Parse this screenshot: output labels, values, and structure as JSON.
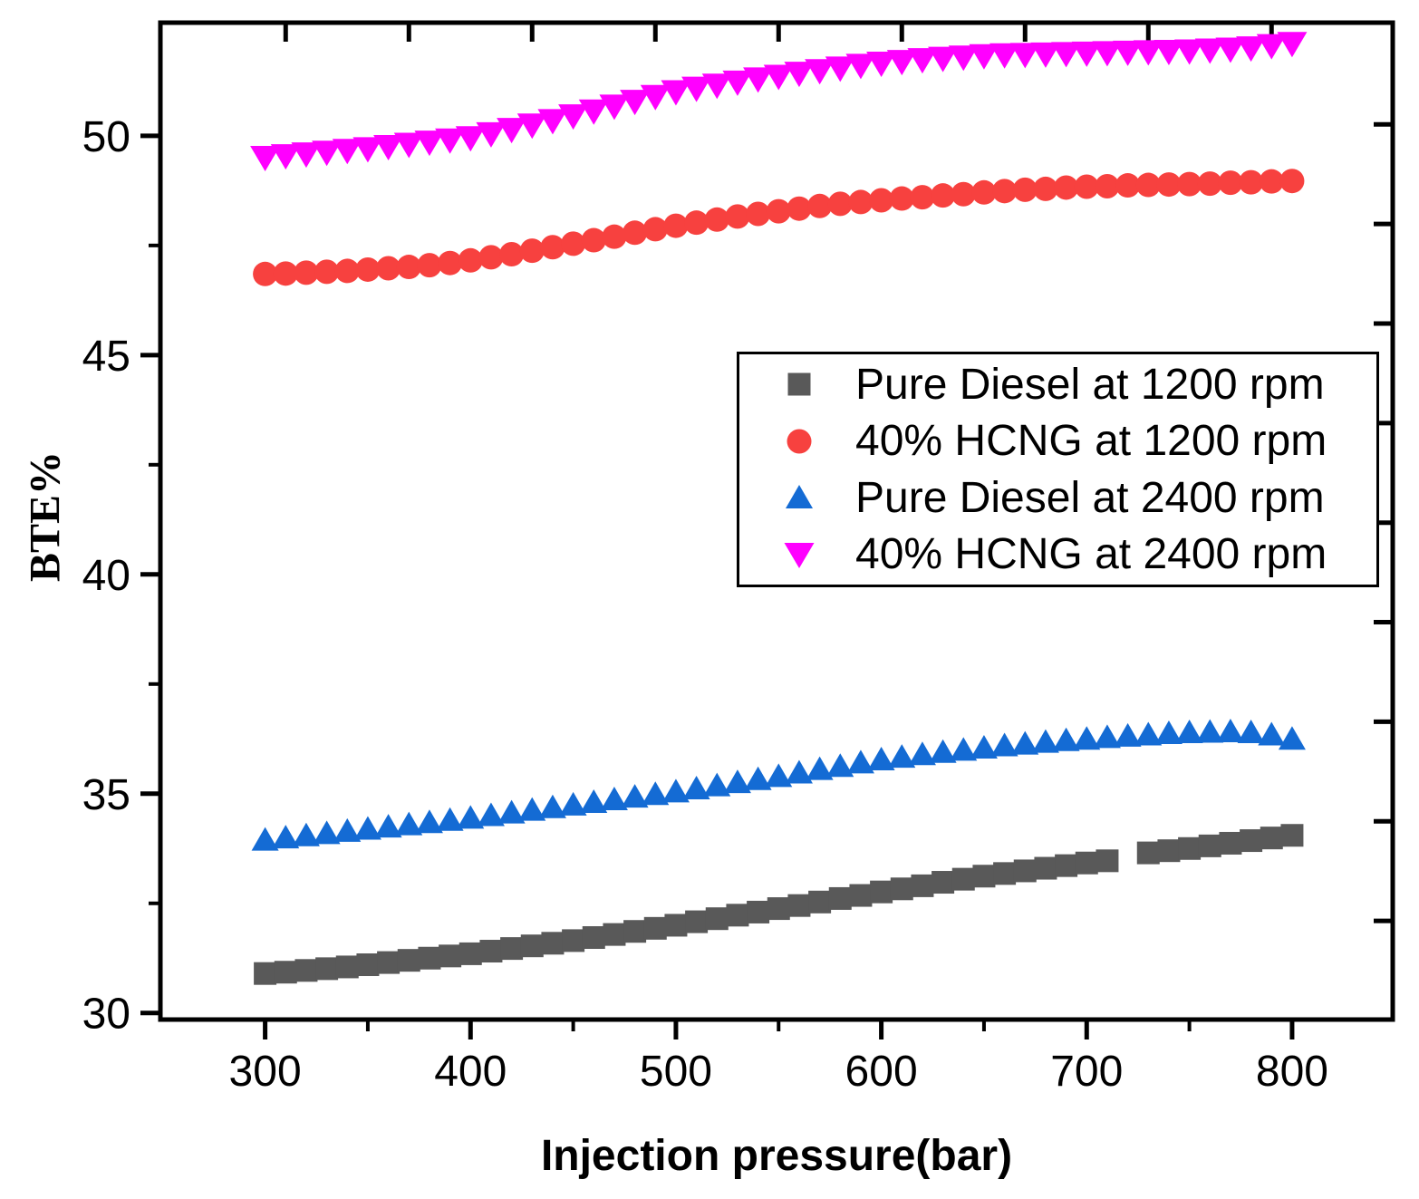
{
  "chart_data": {
    "type": "scatter",
    "title": "",
    "xlabel": "Injection pressure(bar)",
    "ylabel": "BTE%",
    "xlim": [
      249,
      849
    ],
    "ylim": [
      29.85,
      52.58
    ],
    "grid": false,
    "legend_position": "upper-right-inside",
    "x_ticks_major": [
      300,
      400,
      500,
      600,
      700,
      800
    ],
    "x_ticks_minor": [
      350,
      450,
      550,
      650,
      750
    ],
    "y_ticks_major": [
      30,
      35,
      40,
      45,
      50
    ],
    "y_ticks_minor": [
      32.5,
      37.5,
      42.5,
      47.5
    ],
    "top_axis_ticks": [
      310,
      370,
      430,
      490,
      550,
      610,
      670,
      730,
      790
    ],
    "right_axis_tick_values": [
      32.1,
      34.37,
      36.64,
      38.91,
      41.18,
      43.45,
      45.72,
      47.99,
      50.26
    ],
    "axis_color": "#000000",
    "series": [
      {
        "name": "Pure Diesel at 1200 rpm",
        "marker": "square",
        "color": "#595959",
        "x": [
          300,
          310,
          320,
          330,
          340,
          350,
          360,
          370,
          380,
          390,
          400,
          410,
          420,
          430,
          440,
          450,
          460,
          470,
          480,
          490,
          500,
          510,
          520,
          530,
          540,
          550,
          560,
          570,
          580,
          590,
          600,
          610,
          620,
          630,
          640,
          650,
          660,
          670,
          680,
          690,
          700,
          710,
          730,
          740,
          750,
          760,
          770,
          780,
          790,
          800
        ],
        "y": [
          30.9,
          30.93,
          30.97,
          31.01,
          31.05,
          31.1,
          31.15,
          31.2,
          31.25,
          31.3,
          31.35,
          31.41,
          31.47,
          31.53,
          31.59,
          31.65,
          31.72,
          31.79,
          31.86,
          31.93,
          32.0,
          32.08,
          32.15,
          32.23,
          32.3,
          32.38,
          32.45,
          32.53,
          32.61,
          32.68,
          32.76,
          32.83,
          32.9,
          32.98,
          33.05,
          33.12,
          33.18,
          33.24,
          33.3,
          33.36,
          33.42,
          33.47,
          33.65,
          33.7,
          33.75,
          33.81,
          33.87,
          33.93,
          33.99,
          34.05
        ]
      },
      {
        "name": "40% HCNG at 1200 rpm",
        "marker": "circle",
        "color": "#f7413f",
        "x": [
          300,
          310,
          320,
          330,
          340,
          350,
          360,
          370,
          380,
          390,
          400,
          410,
          420,
          430,
          440,
          450,
          460,
          470,
          480,
          490,
          500,
          510,
          520,
          530,
          540,
          550,
          560,
          570,
          580,
          590,
          600,
          610,
          620,
          630,
          640,
          650,
          660,
          670,
          680,
          690,
          700,
          710,
          720,
          730,
          740,
          750,
          760,
          770,
          780,
          790,
          800
        ],
        "y": [
          46.85,
          46.86,
          46.88,
          46.9,
          46.92,
          46.95,
          46.98,
          47.01,
          47.05,
          47.1,
          47.16,
          47.23,
          47.3,
          47.38,
          47.46,
          47.54,
          47.62,
          47.7,
          47.79,
          47.87,
          47.95,
          48.02,
          48.09,
          48.16,
          48.22,
          48.28,
          48.34,
          48.4,
          48.45,
          48.49,
          48.53,
          48.57,
          48.6,
          48.64,
          48.67,
          48.71,
          48.74,
          48.77,
          48.79,
          48.82,
          48.84,
          48.85,
          48.87,
          48.88,
          48.89,
          48.9,
          48.91,
          48.93,
          48.94,
          48.96,
          48.97
        ]
      },
      {
        "name": "Pure Diesel at 2400 rpm",
        "marker": "triangle-up",
        "color": "#146bd4",
        "x": [
          300,
          310,
          320,
          330,
          340,
          350,
          360,
          370,
          380,
          390,
          400,
          410,
          420,
          430,
          440,
          450,
          460,
          470,
          480,
          490,
          500,
          510,
          520,
          530,
          540,
          550,
          560,
          570,
          580,
          590,
          600,
          610,
          620,
          630,
          640,
          650,
          660,
          670,
          680,
          690,
          700,
          710,
          720,
          730,
          740,
          750,
          760,
          770,
          780,
          790,
          800
        ],
        "y": [
          33.95,
          34.0,
          34.05,
          34.1,
          34.15,
          34.2,
          34.25,
          34.3,
          34.35,
          34.4,
          34.45,
          34.51,
          34.57,
          34.63,
          34.69,
          34.75,
          34.81,
          34.87,
          34.93,
          34.99,
          35.05,
          35.12,
          35.19,
          35.26,
          35.33,
          35.4,
          35.48,
          35.56,
          35.63,
          35.71,
          35.78,
          35.84,
          35.9,
          35.95,
          36.0,
          36.05,
          36.1,
          36.14,
          36.18,
          36.22,
          36.25,
          36.29,
          36.32,
          36.35,
          36.38,
          36.4,
          36.41,
          36.42,
          36.4,
          36.35,
          36.25
        ]
      },
      {
        "name": "40% HCNG at 2400 rpm",
        "marker": "triangle-down",
        "color": "#ff00ff",
        "x": [
          300,
          310,
          320,
          330,
          340,
          350,
          360,
          370,
          380,
          390,
          400,
          410,
          420,
          430,
          440,
          450,
          460,
          470,
          480,
          490,
          500,
          510,
          520,
          530,
          540,
          550,
          560,
          570,
          580,
          590,
          600,
          610,
          620,
          630,
          640,
          650,
          660,
          670,
          680,
          690,
          700,
          710,
          720,
          730,
          740,
          750,
          760,
          770,
          780,
          790,
          800
        ],
        "y": [
          49.5,
          49.54,
          49.58,
          49.62,
          49.66,
          49.7,
          49.75,
          49.8,
          49.85,
          49.9,
          49.95,
          50.04,
          50.14,
          50.24,
          50.34,
          50.45,
          50.56,
          50.67,
          50.78,
          50.89,
          51.0,
          51.08,
          51.15,
          51.22,
          51.29,
          51.35,
          51.42,
          51.48,
          51.54,
          51.6,
          51.65,
          51.69,
          51.73,
          51.76,
          51.79,
          51.82,
          51.84,
          51.85,
          51.86,
          51.87,
          51.88,
          51.89,
          51.9,
          51.91,
          51.92,
          51.93,
          51.95,
          51.97,
          52.0,
          52.05,
          52.1
        ]
      }
    ]
  }
}
